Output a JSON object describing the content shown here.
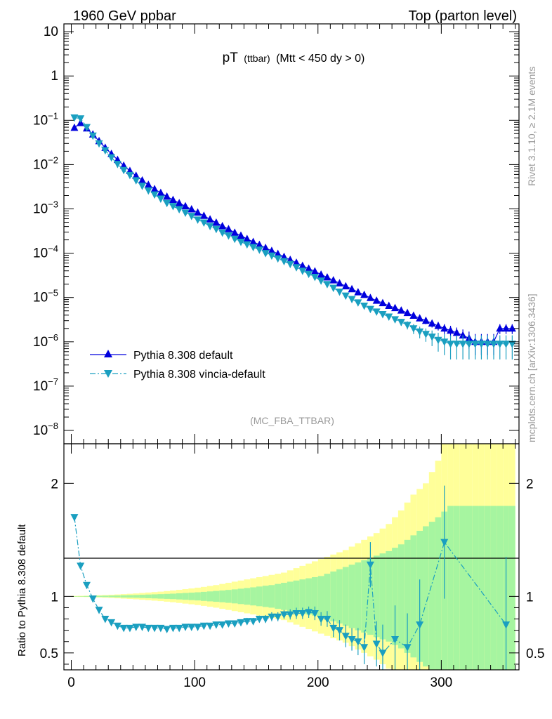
{
  "header": {
    "left": "1960 GeV ppbar",
    "right": "Top (parton level)"
  },
  "side_labels": {
    "rivet": "Rivet 3.1.10, ≥ 2.1M events",
    "mcplots": "mcplots.cern.ch [arXiv:1306.3436]"
  },
  "chart_data": [
    {
      "type": "scatter",
      "title_main": "pT",
      "title_sub": "(ttbar)",
      "title_rest": "(Mtt < 450 dy > 0)",
      "analysis_tag": "(MC_FBA_TTBAR)",
      "yscale": "log",
      "xlim": [
        -6,
        363
      ],
      "ylim": [
        5e-09,
        15
      ],
      "ytick_labels": [
        "10",
        "1",
        "10-1",
        "10-2",
        "10-3",
        "10-4",
        "10-5",
        "10-6",
        "10-7",
        "10-8"
      ],
      "legend_placement": "lower-left",
      "colors": {
        "default": "#0000dd",
        "vincia": "#1a9fc0"
      },
      "series": [
        {
          "name": "Pythia 8.308 default",
          "marker": "triangle-up",
          "x": [
            2.5,
            7.5,
            12.5,
            17.5,
            22.5,
            27.5,
            32.5,
            37.5,
            42.5,
            47.5,
            52.5,
            57.5,
            62.5,
            67.5,
            72.5,
            77.5,
            82.5,
            87.5,
            92.5,
            97.5,
            102.5,
            107.5,
            112.5,
            117.5,
            122.5,
            127.5,
            132.5,
            137.5,
            142.5,
            147.5,
            152.5,
            157.5,
            162.5,
            167.5,
            172.5,
            177.5,
            182.5,
            187.5,
            192.5,
            197.5,
            202.5,
            207.5,
            212.5,
            217.5,
            222.5,
            227.5,
            232.5,
            237.5,
            242.5,
            247.5,
            252.5,
            257.5,
            262.5,
            267.5,
            272.5,
            277.5,
            282.5,
            287.5,
            292.5,
            297.5,
            302.5,
            307.5,
            312.5,
            317.5,
            322.5,
            327.5,
            332.5,
            337.5,
            342.5,
            347.5,
            352.5,
            357.5
          ],
          "y": [
            0.068,
            0.087,
            0.066,
            0.048,
            0.034,
            0.024,
            0.0175,
            0.0128,
            0.0095,
            0.0072,
            0.0056,
            0.0044,
            0.0035,
            0.0028,
            0.0023,
            0.0019,
            0.0016,
            0.00135,
            0.00115,
            0.00098,
            0.00083,
            0.0007,
            0.00058,
            0.00049,
            0.00041,
            0.00035,
            0.00029,
            0.00025,
            0.00021,
            0.00018,
            0.000155,
            0.000132,
            0.000113,
            9.7e-05,
            8.3e-05,
            7.1e-05,
            6.1e-05,
            5.2e-05,
            4.5e-05,
            3.9e-05,
            3.3e-05,
            2.85e-05,
            2.45e-05,
            2.1e-05,
            1.8e-05,
            1.55e-05,
            1.32e-05,
            1.15e-05,
            9.8e-06,
            8.5e-06,
            7.5e-06,
            6.5e-06,
            5.8e-06,
            5.1e-06,
            4.5e-06,
            3.9e-06,
            3.4e-06,
            3e-06,
            2.6e-06,
            2.3e-06,
            2e-06,
            1.8e-06,
            1.6e-06,
            1.4e-06,
            1.2e-06,
            1e-06,
            1e-06,
            1e-06,
            1e-06,
            2e-06,
            2e-06,
            2e-06
          ],
          "err": [
            0.001,
            0.001,
            0.0008,
            0.0005,
            0.0003,
            0.0002,
            0.0001,
            8e-05,
            6e-05,
            5e-05,
            4e-05,
            3e-05,
            2e-05,
            2e-05,
            1.5e-05,
            1.2e-05,
            1e-05,
            9e-06,
            8e-06,
            7e-06,
            6e-06,
            5e-06,
            4e-06,
            3.5e-06,
            3e-06,
            2.5e-06,
            2e-06,
            1.8e-06,
            1.6e-06,
            1.4e-06,
            1.3e-06,
            1.2e-06,
            1.1e-06,
            1e-06,
            9e-07,
            8e-07,
            8e-07,
            7e-07,
            7e-07,
            6e-07,
            6e-07,
            6e-07,
            5e-07,
            5e-07,
            5e-07,
            5e-07,
            5e-07,
            5e-07,
            5e-07,
            5e-07,
            5e-07,
            5e-07,
            5e-07,
            5e-07,
            5e-07,
            5e-07,
            5e-07,
            5e-07,
            5e-07,
            5e-07,
            5e-07,
            5e-07,
            5e-07,
            5e-07,
            5e-07,
            5e-07,
            5e-07,
            5e-07,
            5e-07,
            5e-07,
            5e-07,
            5e-07
          ]
        },
        {
          "name": "Pythia 8.308 vincia-default",
          "marker": "triangle-down",
          "x": [
            2.5,
            7.5,
            12.5,
            17.5,
            22.5,
            27.5,
            32.5,
            37.5,
            42.5,
            47.5,
            52.5,
            57.5,
            62.5,
            67.5,
            72.5,
            77.5,
            82.5,
            87.5,
            92.5,
            97.5,
            102.5,
            107.5,
            112.5,
            117.5,
            122.5,
            127.5,
            132.5,
            137.5,
            142.5,
            147.5,
            152.5,
            157.5,
            162.5,
            167.5,
            172.5,
            177.5,
            182.5,
            187.5,
            192.5,
            197.5,
            202.5,
            207.5,
            212.5,
            217.5,
            222.5,
            227.5,
            232.5,
            237.5,
            242.5,
            247.5,
            252.5,
            257.5,
            262.5,
            267.5,
            272.5,
            277.5,
            282.5,
            287.5,
            292.5,
            297.5,
            302.5,
            307.5,
            312.5,
            317.5,
            322.5,
            327.5,
            332.5,
            337.5,
            342.5,
            347.5,
            352.5,
            357.5
          ],
          "y": [
            0.115,
            0.11,
            0.07,
            0.045,
            0.03,
            0.021,
            0.0145,
            0.0103,
            0.0075,
            0.0058,
            0.0044,
            0.0033,
            0.0026,
            0.0021,
            0.0017,
            0.00135,
            0.00115,
            0.00098,
            0.00082,
            0.00069,
            0.00057,
            0.00049,
            0.00041,
            0.00035,
            0.00029,
            0.00025,
            0.00021,
            0.00018,
            0.000158,
            0.000137,
            0.00012,
            0.0001,
            8.8e-05,
            7.6e-05,
            6.6e-05,
            5.7e-05,
            4.8e-05,
            4e-05,
            3.4e-05,
            2.9e-05,
            2.4e-05,
            2e-05,
            1.65e-05,
            1.35e-05,
            1.1e-05,
            9.2e-06,
            7.7e-06,
            6.5e-06,
            5.5e-06,
            4.8e-06,
            4.2e-06,
            3.7e-06,
            3.2e-06,
            2.8e-06,
            2.4e-06,
            2e-06,
            1.7e-06,
            1.5e-06,
            1.3e-06,
            1.1e-06,
            1e-06,
            9e-07,
            9e-07,
            9e-07,
            9e-07,
            9e-07,
            9e-07,
            9e-07,
            9e-07,
            9e-07,
            9e-07,
            9e-07
          ],
          "err": [
            0.001,
            0.001,
            0.0008,
            0.0005,
            0.0003,
            0.0002,
            0.0001,
            8e-05,
            6e-05,
            5e-05,
            4e-05,
            3e-05,
            2e-05,
            2e-05,
            1.5e-05,
            1.2e-05,
            1e-05,
            9e-06,
            8e-06,
            7e-06,
            6e-06,
            5e-06,
            4e-06,
            3.5e-06,
            3e-06,
            2.5e-06,
            2e-06,
            1.8e-06,
            1.6e-06,
            1.4e-06,
            1.3e-06,
            1.2e-06,
            1.1e-06,
            1e-06,
            9e-07,
            8e-07,
            8e-07,
            7e-07,
            7e-07,
            6e-07,
            6e-07,
            6e-07,
            5e-07,
            5e-07,
            5e-07,
            5e-07,
            5e-07,
            5e-07,
            5e-07,
            5e-07,
            5e-07,
            5e-07,
            5e-07,
            5e-07,
            5e-07,
            5e-07,
            5e-07,
            5e-07,
            5e-07,
            5e-07,
            5e-07,
            5e-07,
            5e-07,
            5e-07,
            5e-07,
            5e-07,
            5e-07,
            5e-07,
            5e-07,
            5e-07,
            5e-07,
            5e-07
          ]
        }
      ]
    },
    {
      "type": "scatter",
      "ylabel": "Ratio to Pythia 8.308 default",
      "xlim": [
        -6,
        363
      ],
      "ylim": [
        0.35,
        2.35
      ],
      "xtick_labels": [
        "0",
        "100",
        "200",
        "300"
      ],
      "ytick_labels": [
        "0.5",
        "1",
        "2"
      ],
      "reference_line": 1,
      "band_colors": {
        "inner": "#a6f5a0",
        "outer": "#ffff99"
      },
      "band_x": [
        2.5,
        7.5,
        12.5,
        17.5,
        22.5,
        27.5,
        32.5,
        37.5,
        42.5,
        47.5,
        52.5,
        57.5,
        62.5,
        67.5,
        72.5,
        77.5,
        82.5,
        87.5,
        92.5,
        97.5,
        102.5,
        107.5,
        112.5,
        117.5,
        122.5,
        127.5,
        132.5,
        137.5,
        142.5,
        147.5,
        152.5,
        157.5,
        162.5,
        167.5,
        172.5,
        177.5,
        182.5,
        187.5,
        192.5,
        197.5,
        202.5,
        207.5,
        212.5,
        217.5,
        222.5,
        227.5,
        232.5,
        237.5,
        242.5,
        247.5,
        252.5,
        257.5,
        262.5,
        267.5,
        272.5,
        277.5,
        282.5,
        287.5,
        292.5,
        297.5,
        302.5,
        307.5,
        312.5,
        317.5,
        322.5,
        327.5,
        332.5,
        337.5,
        342.5,
        347.5,
        352.5,
        357.5
      ],
      "band_inner": [
        0.002,
        0.002,
        0.003,
        0.004,
        0.005,
        0.006,
        0.007,
        0.008,
        0.01,
        0.011,
        0.012,
        0.014,
        0.016,
        0.018,
        0.02,
        0.022,
        0.024,
        0.027,
        0.03,
        0.033,
        0.036,
        0.04,
        0.044,
        0.048,
        0.052,
        0.057,
        0.062,
        0.068,
        0.074,
        0.08,
        0.087,
        0.094,
        0.1,
        0.11,
        0.12,
        0.13,
        0.14,
        0.15,
        0.16,
        0.17,
        0.18,
        0.2,
        0.22,
        0.24,
        0.26,
        0.28,
        0.3,
        0.32,
        0.34,
        0.36,
        0.38,
        0.4,
        0.43,
        0.46,
        0.5,
        0.54,
        0.58,
        0.62,
        0.66,
        0.7,
        0.75,
        0.8,
        0.8,
        0.8,
        0.8,
        0.8,
        0.8,
        0.8,
        0.8,
        0.8,
        0.8,
        0.8
      ],
      "band_outer": [
        0.004,
        0.005,
        0.006,
        0.008,
        0.01,
        0.012,
        0.014,
        0.017,
        0.02,
        0.023,
        0.026,
        0.03,
        0.034,
        0.038,
        0.042,
        0.047,
        0.052,
        0.058,
        0.064,
        0.07,
        0.077,
        0.084,
        0.092,
        0.1,
        0.11,
        0.12,
        0.13,
        0.14,
        0.15,
        0.16,
        0.17,
        0.18,
        0.19,
        0.2,
        0.21,
        0.23,
        0.25,
        0.27,
        0.29,
        0.31,
        0.33,
        0.35,
        0.37,
        0.39,
        0.41,
        0.44,
        0.47,
        0.5,
        0.53,
        0.56,
        0.6,
        0.64,
        0.7,
        0.76,
        0.83,
        0.9,
        0.95,
        1.0,
        1.1,
        1.2,
        1.4,
        1.4,
        1.4,
        1.4,
        1.4,
        1.4,
        1.4,
        1.4,
        1.4,
        1.4,
        1.4,
        1.4
      ],
      "series": [
        {
          "name": "Pythia 8.308 vincia-default",
          "marker": "triangle-down",
          "x": [
            2.5,
            7.5,
            12.5,
            17.5,
            22.5,
            27.5,
            32.5,
            37.5,
            42.5,
            47.5,
            52.5,
            57.5,
            62.5,
            67.5,
            72.5,
            77.5,
            82.5,
            87.5,
            92.5,
            97.5,
            102.5,
            107.5,
            112.5,
            117.5,
            122.5,
            127.5,
            132.5,
            137.5,
            142.5,
            147.5,
            152.5,
            157.5,
            162.5,
            167.5,
            172.5,
            177.5,
            182.5,
            187.5,
            192.5,
            197.5,
            202.5,
            207.5,
            212.5,
            217.5,
            222.5,
            227.5,
            232.5,
            237.5,
            242.5,
            247.5,
            252.5,
            262.5,
            272.5,
            282.5,
            302.5,
            352.5
          ],
          "y": [
            1.7,
            1.27,
            1.1,
            0.98,
            0.88,
            0.8,
            0.77,
            0.74,
            0.72,
            0.72,
            0.73,
            0.73,
            0.72,
            0.72,
            0.72,
            0.71,
            0.72,
            0.72,
            0.73,
            0.73,
            0.73,
            0.74,
            0.74,
            0.75,
            0.75,
            0.76,
            0.76,
            0.77,
            0.78,
            0.78,
            0.8,
            0.8,
            0.82,
            0.82,
            0.84,
            0.84,
            0.85,
            0.85,
            0.86,
            0.85,
            0.8,
            0.8,
            0.72,
            0.7,
            0.65,
            0.62,
            0.6,
            0.55,
            1.28,
            0.58,
            0.5,
            0.62,
            0.55,
            0.75,
            1.48,
            0.75
          ],
          "err": [
            0.02,
            0.015,
            0.01,
            0.01,
            0.01,
            0.01,
            0.01,
            0.01,
            0.01,
            0.01,
            0.01,
            0.01,
            0.01,
            0.01,
            0.01,
            0.01,
            0.01,
            0.01,
            0.01,
            0.01,
            0.01,
            0.015,
            0.015,
            0.02,
            0.02,
            0.02,
            0.02,
            0.025,
            0.03,
            0.03,
            0.03,
            0.035,
            0.04,
            0.04,
            0.04,
            0.045,
            0.05,
            0.05,
            0.05,
            0.06,
            0.06,
            0.07,
            0.08,
            0.09,
            0.1,
            0.1,
            0.12,
            0.15,
            0.2,
            0.2,
            0.25,
            0.3,
            0.3,
            0.4,
            0.5,
            0.6
          ]
        }
      ]
    }
  ]
}
